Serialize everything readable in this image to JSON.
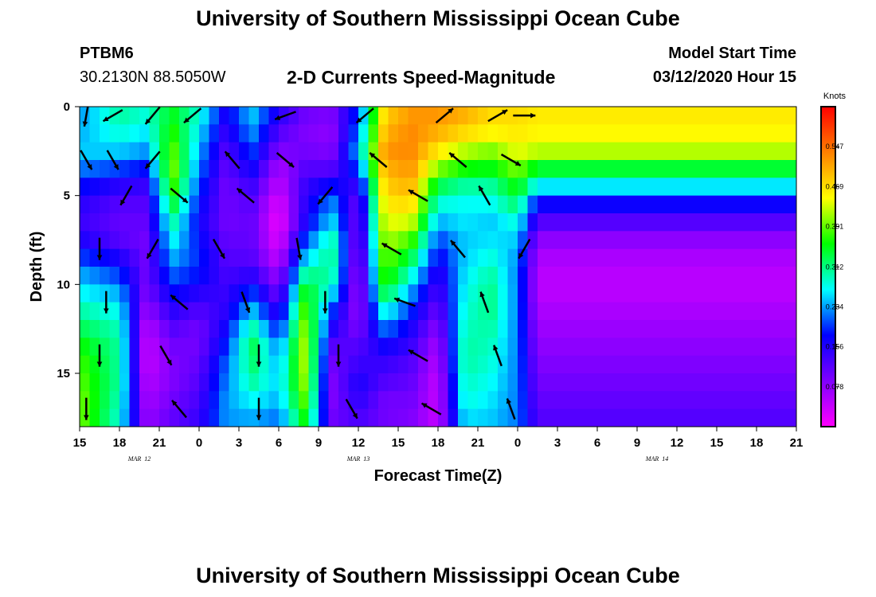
{
  "header": {
    "title": "University of Southern Mississippi Ocean Cube",
    "station_id": "PTBM6",
    "station_coords": "30.2130N 88.5050W",
    "chart_title": "2-D Currents Speed-Magnitude",
    "start_label": "Model Start Time",
    "start_value": "03/12/2020 Hour 15"
  },
  "footer": {
    "title": "University of Southern Mississippi Ocean Cube"
  },
  "chart_data": {
    "type": "heatmap",
    "title": "2-D Currents Speed-Magnitude",
    "xlabel": "Forecast Time(Z)",
    "ylabel": "Depth (ft)",
    "x_range": [
      0,
      54
    ],
    "x_tick_values": [
      0,
      3,
      6,
      9,
      12,
      15,
      18,
      21,
      24,
      27,
      30,
      33,
      36,
      39,
      42,
      45,
      48,
      51,
      54
    ],
    "x_tick_labels": [
      "15",
      "18",
      "21",
      "0",
      "3",
      "6",
      "9",
      "12",
      "15",
      "18",
      "21",
      "0",
      "3",
      "6",
      "9",
      "12",
      "15",
      "18",
      "21"
    ],
    "date_labels": [
      {
        "text": "MAR  12",
        "x": 4.5
      },
      {
        "text": "MAR  13",
        "x": 21
      },
      {
        "text": "MAR  14",
        "x": 43.5
      }
    ],
    "y_range": [
      0,
      18
    ],
    "y_ticks": [
      0,
      5,
      10,
      15
    ],
    "y_inverted": true,
    "colorbar": {
      "title": "Knots",
      "range": [
        0,
        0.625
      ],
      "tick_values": [
        0.078,
        0.156,
        0.234,
        0.312,
        0.391,
        0.469,
        0.547
      ],
      "tick_labels": [
        "0.078",
        "0.156",
        "0.234",
        "0.312",
        "0.391",
        "0.469",
        "0.547"
      ],
      "colormap": [
        "#ff00ff",
        "#8000ff",
        "#0000ff",
        "#00ffff",
        "#00ff00",
        "#ffff00",
        "#ff8000",
        "#ff0000"
      ]
    },
    "depths": [
      0,
      1,
      2,
      3,
      4,
      5,
      6,
      7,
      8,
      9,
      10,
      11,
      12,
      13,
      14,
      15,
      16,
      17,
      18
    ],
    "speed_columns": [
      {
        "x": 0,
        "speeds": [
          0.23,
          0.24,
          0.25,
          0.22,
          0.18,
          0.15,
          0.14,
          0.16,
          0.2,
          0.24,
          0.27,
          0.3,
          0.33,
          0.36,
          0.38,
          0.39,
          0.4,
          0.4,
          0.4
        ]
      },
      {
        "x": 3,
        "speeds": [
          0.3,
          0.28,
          0.25,
          0.2,
          0.15,
          0.12,
          0.11,
          0.12,
          0.16,
          0.2,
          0.24,
          0.27,
          0.29,
          0.3,
          0.3,
          0.3,
          0.29,
          0.28,
          0.28
        ]
      },
      {
        "x": 5,
        "speeds": [
          0.28,
          0.26,
          0.23,
          0.18,
          0.14,
          0.12,
          0.11,
          0.1,
          0.1,
          0.1,
          0.09,
          0.07,
          0.05,
          0.04,
          0.04,
          0.05,
          0.06,
          0.07,
          0.08
        ]
      },
      {
        "x": 7,
        "speeds": [
          0.35,
          0.37,
          0.39,
          0.4,
          0.38,
          0.34,
          0.3,
          0.27,
          0.24,
          0.21,
          0.18,
          0.15,
          0.12,
          0.1,
          0.09,
          0.09,
          0.1,
          0.11,
          0.12
        ]
      },
      {
        "x": 9,
        "speeds": [
          0.28,
          0.26,
          0.24,
          0.22,
          0.2,
          0.18,
          0.17,
          0.18,
          0.19,
          0.18,
          0.15,
          0.12,
          0.1,
          0.1,
          0.11,
          0.12,
          0.13,
          0.14,
          0.15
        ]
      },
      {
        "x": 11,
        "speeds": [
          0.16,
          0.14,
          0.12,
          0.11,
          0.1,
          0.1,
          0.1,
          0.11,
          0.12,
          0.13,
          0.14,
          0.15,
          0.17,
          0.19,
          0.21,
          0.22,
          0.23,
          0.23,
          0.23
        ]
      },
      {
        "x": 13,
        "speeds": [
          0.25,
          0.23,
          0.2,
          0.17,
          0.14,
          0.12,
          0.11,
          0.11,
          0.12,
          0.15,
          0.2,
          0.25,
          0.3,
          0.33,
          0.32,
          0.3,
          0.27,
          0.24,
          0.22
        ]
      },
      {
        "x": 15,
        "speeds": [
          0.15,
          0.12,
          0.09,
          0.06,
          0.04,
          0.02,
          0.01,
          0.02,
          0.04,
          0.07,
          0.1,
          0.14,
          0.18,
          0.22,
          0.24,
          0.25,
          0.24,
          0.22,
          0.2
        ]
      },
      {
        "x": 17,
        "speeds": [
          0.1,
          0.09,
          0.1,
          0.12,
          0.14,
          0.15,
          0.16,
          0.2,
          0.25,
          0.31,
          0.36,
          0.39,
          0.41,
          0.42,
          0.42,
          0.41,
          0.39,
          0.36,
          0.33
        ]
      },
      {
        "x": 19,
        "speeds": [
          0.09,
          0.08,
          0.09,
          0.12,
          0.18,
          0.23,
          0.26,
          0.3,
          0.31,
          0.3,
          0.26,
          0.2,
          0.16,
          0.12,
          0.1,
          0.09,
          0.09,
          0.1,
          0.1
        ]
      },
      {
        "x": 21,
        "speeds": [
          0.2,
          0.22,
          0.24,
          0.2,
          0.14,
          0.1,
          0.09,
          0.08,
          0.07,
          0.06,
          0.06,
          0.07,
          0.09,
          0.12,
          0.14,
          0.16,
          0.15,
          0.13,
          0.11
        ]
      },
      {
        "x": 23,
        "speeds": [
          0.48,
          0.5,
          0.52,
          0.5,
          0.48,
          0.46,
          0.44,
          0.42,
          0.4,
          0.38,
          0.34,
          0.28,
          0.22,
          0.17,
          0.14,
          0.12,
          0.1,
          0.1,
          0.1
        ]
      },
      {
        "x": 25,
        "speeds": [
          0.52,
          0.53,
          0.53,
          0.52,
          0.5,
          0.47,
          0.43,
          0.38,
          0.33,
          0.28,
          0.23,
          0.19,
          0.16,
          0.14,
          0.12,
          0.11,
          0.1,
          0.09,
          0.09
        ]
      },
      {
        "x": 27,
        "speeds": [
          0.52,
          0.5,
          0.46,
          0.4,
          0.33,
          0.28,
          0.24,
          0.2,
          0.17,
          0.14,
          0.12,
          0.1,
          0.08,
          0.06,
          0.05,
          0.04,
          0.04,
          0.04,
          0.05
        ]
      },
      {
        "x": 29,
        "speeds": [
          0.5,
          0.47,
          0.42,
          0.36,
          0.3,
          0.27,
          0.26,
          0.25,
          0.25,
          0.26,
          0.27,
          0.28,
          0.29,
          0.3,
          0.3,
          0.29,
          0.28,
          0.26,
          0.25
        ]
      },
      {
        "x": 31,
        "speeds": [
          0.47,
          0.45,
          0.4,
          0.35,
          0.3,
          0.27,
          0.25,
          0.26,
          0.28,
          0.3,
          0.31,
          0.31,
          0.3,
          0.29,
          0.28,
          0.27,
          0.26,
          0.25,
          0.24
        ]
      },
      {
        "x": 33,
        "speeds": [
          0.47,
          0.46,
          0.44,
          0.4,
          0.36,
          0.32,
          0.28,
          0.25,
          0.23,
          0.22,
          0.22,
          0.22,
          0.22,
          0.22,
          0.22,
          0.22,
          0.22,
          0.22,
          0.22
        ]
      },
      {
        "x": 34.5,
        "speeds": [
          0.46,
          0.45,
          0.42,
          0.34,
          0.26,
          0.17,
          0.12,
          0.08,
          0.06,
          0.05,
          0.05,
          0.06,
          0.07,
          0.08,
          0.09,
          0.1,
          0.11,
          0.12,
          0.13
        ]
      }
    ],
    "arrows": [
      {
        "x": 0.5,
        "depth": 0.5,
        "angle_deg": 260
      },
      {
        "x": 2.5,
        "depth": 0.5,
        "angle_deg": 210
      },
      {
        "x": 5.5,
        "depth": 0.5,
        "angle_deg": 230
      },
      {
        "x": 8.5,
        "depth": 0.5,
        "angle_deg": 220
      },
      {
        "x": 15.5,
        "depth": 0.5,
        "angle_deg": 200
      },
      {
        "x": 21.5,
        "depth": 0.5,
        "angle_deg": 220
      },
      {
        "x": 27.5,
        "depth": 0.5,
        "angle_deg": 40
      },
      {
        "x": 31.5,
        "depth": 0.5,
        "angle_deg": 30
      },
      {
        "x": 33.5,
        "depth": 0.5,
        "angle_deg": 0
      },
      {
        "x": 0.5,
        "depth": 3,
        "angle_deg": 300
      },
      {
        "x": 2.5,
        "depth": 3,
        "angle_deg": 300
      },
      {
        "x": 5.5,
        "depth": 3,
        "angle_deg": 230
      },
      {
        "x": 11.5,
        "depth": 3,
        "angle_deg": 130
      },
      {
        "x": 15.5,
        "depth": 3,
        "angle_deg": 320
      },
      {
        "x": 22.5,
        "depth": 3,
        "angle_deg": 140
      },
      {
        "x": 28.5,
        "depth": 3,
        "angle_deg": 140
      },
      {
        "x": 32.5,
        "depth": 3,
        "angle_deg": 330
      },
      {
        "x": 3.5,
        "depth": 5,
        "angle_deg": 240
      },
      {
        "x": 7.5,
        "depth": 5,
        "angle_deg": 320
      },
      {
        "x": 12.5,
        "depth": 5,
        "angle_deg": 140
      },
      {
        "x": 18.5,
        "depth": 5,
        "angle_deg": 230
      },
      {
        "x": 25.5,
        "depth": 5,
        "angle_deg": 150
      },
      {
        "x": 30.5,
        "depth": 5,
        "angle_deg": 120
      },
      {
        "x": 1.5,
        "depth": 8,
        "angle_deg": 270
      },
      {
        "x": 5.5,
        "depth": 8,
        "angle_deg": 240
      },
      {
        "x": 10.5,
        "depth": 8,
        "angle_deg": 300
      },
      {
        "x": 16.5,
        "depth": 8,
        "angle_deg": 280
      },
      {
        "x": 23.5,
        "depth": 8,
        "angle_deg": 150
      },
      {
        "x": 28.5,
        "depth": 8,
        "angle_deg": 130
      },
      {
        "x": 33.5,
        "depth": 8,
        "angle_deg": 240
      },
      {
        "x": 2.0,
        "depth": 11,
        "angle_deg": 270
      },
      {
        "x": 7.5,
        "depth": 11,
        "angle_deg": 140
      },
      {
        "x": 12.5,
        "depth": 11,
        "angle_deg": 290
      },
      {
        "x": 18.5,
        "depth": 11,
        "angle_deg": 270
      },
      {
        "x": 24.5,
        "depth": 11,
        "angle_deg": 160
      },
      {
        "x": 30.5,
        "depth": 11,
        "angle_deg": 110
      },
      {
        "x": 1.5,
        "depth": 14,
        "angle_deg": 270
      },
      {
        "x": 6.5,
        "depth": 14,
        "angle_deg": 300
      },
      {
        "x": 13.5,
        "depth": 14,
        "angle_deg": 270
      },
      {
        "x": 19.5,
        "depth": 14,
        "angle_deg": 270
      },
      {
        "x": 25.5,
        "depth": 14,
        "angle_deg": 150
      },
      {
        "x": 31.5,
        "depth": 14,
        "angle_deg": 110
      },
      {
        "x": 0.5,
        "depth": 17,
        "angle_deg": 270
      },
      {
        "x": 7.5,
        "depth": 17,
        "angle_deg": 130
      },
      {
        "x": 13.5,
        "depth": 17,
        "angle_deg": 270
      },
      {
        "x": 20.5,
        "depth": 17,
        "angle_deg": 300
      },
      {
        "x": 26.5,
        "depth": 17,
        "angle_deg": 150
      },
      {
        "x": 32.5,
        "depth": 17,
        "angle_deg": 110
      }
    ]
  }
}
